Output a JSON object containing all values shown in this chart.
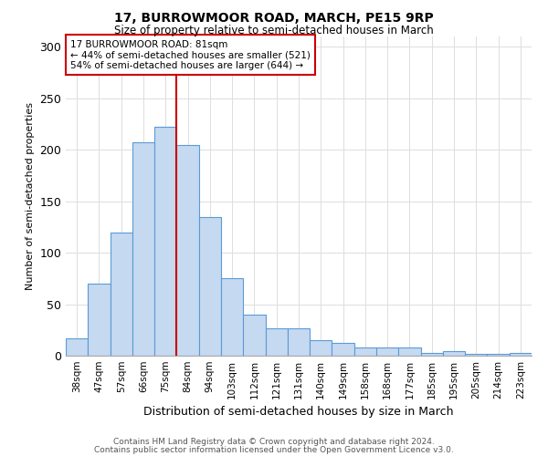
{
  "title": "17, BURROWMOOR ROAD, MARCH, PE15 9RP",
  "subtitle": "Size of property relative to semi-detached houses in March",
  "xlabel": "Distribution of semi-detached houses by size in March",
  "ylabel": "Number of semi-detached properties",
  "categories": [
    "38sqm",
    "47sqm",
    "57sqm",
    "66sqm",
    "75sqm",
    "84sqm",
    "94sqm",
    "103sqm",
    "112sqm",
    "121sqm",
    "131sqm",
    "140sqm",
    "149sqm",
    "158sqm",
    "168sqm",
    "177sqm",
    "185sqm",
    "195sqm",
    "205sqm",
    "214sqm",
    "223sqm"
  ],
  "values": [
    17,
    70,
    120,
    207,
    222,
    205,
    135,
    75,
    40,
    27,
    27,
    15,
    12,
    8,
    8,
    8,
    3,
    4,
    2,
    2,
    3
  ],
  "bar_color": "#c5d9f1",
  "bar_edge_color": "#5b9bd5",
  "highlight_index": 4,
  "highlight_line_color": "#cc0000",
  "annotation_line1": "17 BURROWMOOR ROAD: 81sqm",
  "annotation_line2": "← 44% of semi-detached houses are smaller (521)",
  "annotation_line3": "54% of semi-detached houses are larger (644) →",
  "annotation_box_color": "#ffffff",
  "annotation_box_edge_color": "#cc0000",
  "ylim": [
    0,
    310
  ],
  "yticks": [
    0,
    50,
    100,
    150,
    200,
    250,
    300
  ],
  "footer_line1": "Contains HM Land Registry data © Crown copyright and database right 2024.",
  "footer_line2": "Contains public sector information licensed under the Open Government Licence v3.0.",
  "background_color": "#ffffff",
  "grid_color": "#dddddd"
}
